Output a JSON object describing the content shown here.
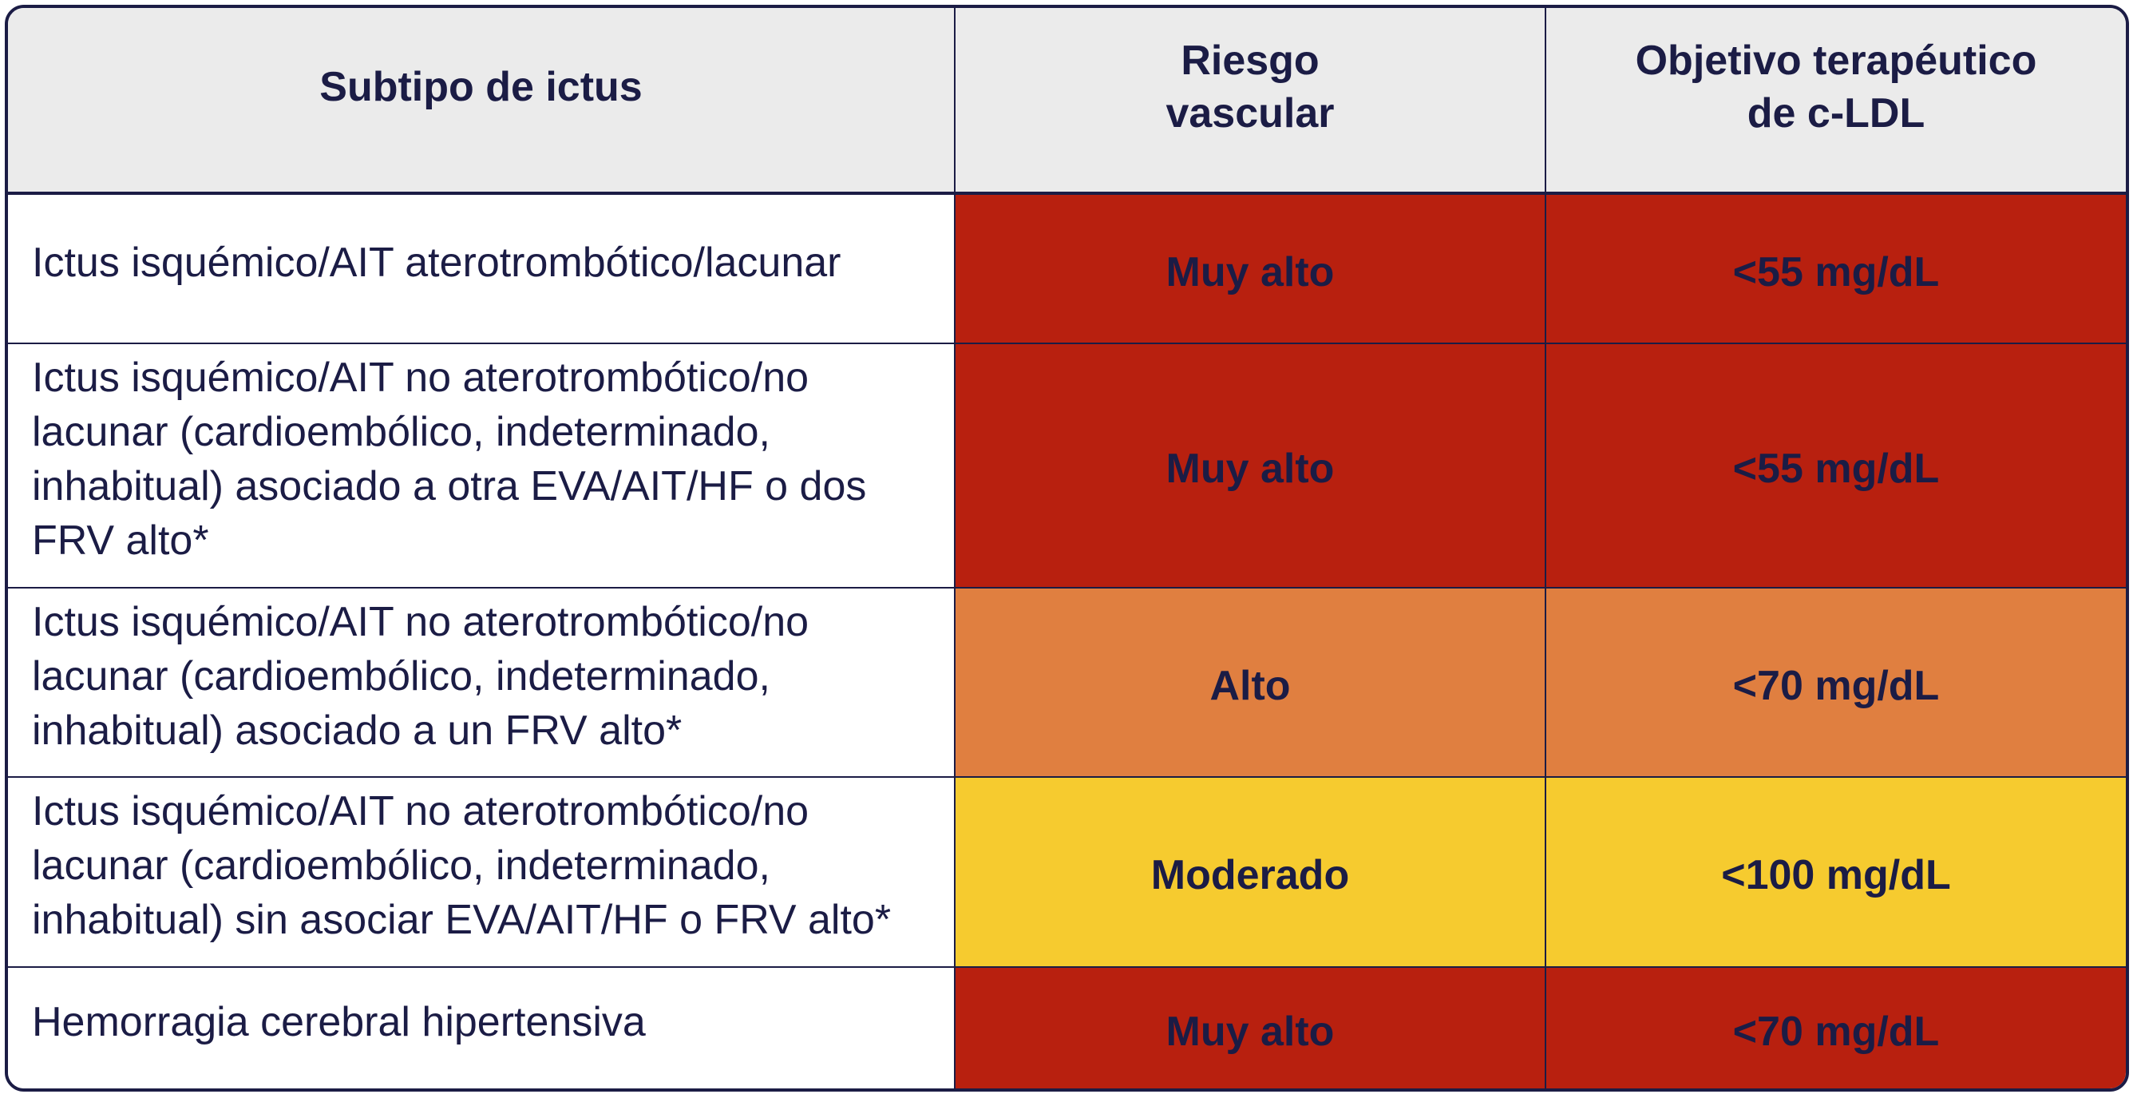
{
  "table": {
    "headers": {
      "subtype": "Subtipo de ictus",
      "risk_line1": "Riesgo",
      "risk_line2": "vascular",
      "target_line1": "Objetivo terapéutico",
      "target_line2": "de c-LDL"
    },
    "rows": [
      {
        "subtype_lines": [
          "Ictus isquémico/AIT aterotrombótico/lacunar"
        ],
        "risk": "Muy alto",
        "target": "<55 mg/dL",
        "risk_color": "#b8200f"
      },
      {
        "subtype_lines": [
          "Ictus isquémico/AIT no aterotrombótico/no",
          "lacunar (cardioembólico, indeterminado,",
          "inhabitual) asociado a otra EVA/AIT/HF o dos",
          "FRV alto*"
        ],
        "risk": "Muy alto",
        "target": "<55 mg/dL",
        "risk_color": "#b8200f"
      },
      {
        "subtype_lines": [
          "Ictus isquémico/AIT no aterotrombótico/no",
          "lacunar (cardioembólico, indeterminado,",
          "inhabitual) asociado a un FRV alto*"
        ],
        "risk": "Alto",
        "target": "<70 mg/dL",
        "risk_color": "#e07f40"
      },
      {
        "subtype_lines": [
          "Ictus isquémico/AIT no aterotrombótico/no",
          "lacunar (cardioembólico, indeterminado,",
          "inhabitual) sin asociar EVA/AIT/HF o FRV alto*"
        ],
        "risk": "Moderado",
        "target": "<100 mg/dL",
        "risk_color": "#f6cb2f"
      },
      {
        "subtype_lines": [
          "Hemorragia cerebral hipertensiva"
        ],
        "risk": "Muy alto",
        "target": "<70 mg/dL",
        "risk_color": "#b8200f"
      }
    ]
  },
  "colors": {
    "border": "#1b1c45",
    "header_bg": "#ebebeb",
    "text": "#1b1c45"
  }
}
